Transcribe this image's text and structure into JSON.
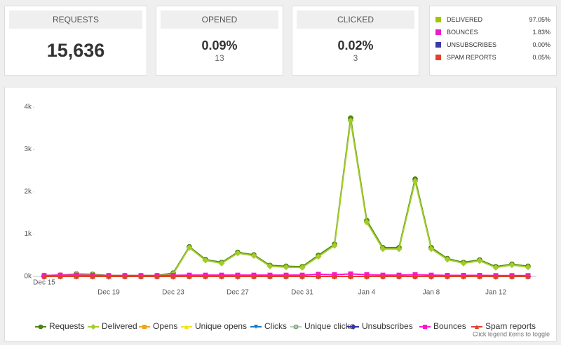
{
  "cards": [
    {
      "label": "REQUESTS",
      "value": "15,636"
    },
    {
      "label": "OPENED",
      "value": "0.09%",
      "sub": "13"
    },
    {
      "label": "CLICKED",
      "value": "0.02%",
      "sub": "3"
    }
  ],
  "stats": [
    {
      "label": "DELIVERED",
      "value": "97.05%",
      "color": "#a4c400"
    },
    {
      "label": "BOUNCES",
      "value": "1.83%",
      "color": "#e81ec8"
    },
    {
      "label": "UNSUBSCRIBES",
      "value": "0.00%",
      "color": "#3a3aa8"
    },
    {
      "label": "SPAM REPORTS",
      "value": "0.05%",
      "color": "#e2412a"
    }
  ],
  "chart_data": {
    "type": "line",
    "categories": [
      "Dec 15",
      null,
      null,
      null,
      "Dec 19",
      null,
      null,
      null,
      "Dec 23",
      null,
      null,
      null,
      "Dec 27",
      null,
      null,
      null,
      "Dec 31",
      null,
      null,
      null,
      "Jan 4",
      null,
      null,
      null,
      "Jan 8",
      null,
      null,
      null,
      "Jan 12",
      null,
      null
    ],
    "series": [
      {
        "name": "Requests",
        "color": "#4c8a10",
        "marker": "circle",
        "values": [
          20,
          30,
          60,
          50,
          20,
          20,
          20,
          20,
          80,
          700,
          400,
          330,
          570,
          510,
          260,
          240,
          230,
          500,
          760,
          3740,
          1320,
          680,
          680,
          2300,
          680,
          420,
          330,
          390,
          230,
          290,
          240
        ]
      },
      {
        "name": "Delivered",
        "color": "#a3cc2a",
        "marker": "diamond",
        "values": [
          15,
          25,
          50,
          40,
          15,
          15,
          15,
          15,
          60,
          680,
          380,
          310,
          550,
          490,
          240,
          220,
          210,
          470,
          730,
          3680,
          1280,
          650,
          650,
          2250,
          650,
          400,
          310,
          370,
          210,
          270,
          220
        ]
      },
      {
        "name": "Opens",
        "color": "#f5a21b",
        "marker": "square",
        "values": [
          0,
          0,
          0,
          0,
          0,
          0,
          0,
          0,
          0,
          0,
          0,
          0,
          0,
          0,
          0,
          0,
          0,
          0,
          0,
          0,
          0,
          0,
          0,
          0,
          0,
          0,
          0,
          0,
          0,
          0,
          0
        ]
      },
      {
        "name": "Unique opens",
        "color": "#f3e21a",
        "marker": "triangle",
        "values": [
          0,
          0,
          0,
          0,
          0,
          0,
          0,
          0,
          0,
          0,
          0,
          0,
          0,
          0,
          0,
          0,
          0,
          0,
          0,
          0,
          0,
          0,
          0,
          0,
          0,
          0,
          0,
          0,
          0,
          0,
          0
        ]
      },
      {
        "name": "Clicks",
        "color": "#1c7bc4",
        "marker": "triangle-down",
        "values": [
          0,
          0,
          0,
          0,
          0,
          0,
          0,
          0,
          0,
          0,
          0,
          0,
          0,
          0,
          0,
          0,
          0,
          0,
          0,
          0,
          0,
          0,
          0,
          0,
          0,
          0,
          0,
          0,
          0,
          0,
          0
        ]
      },
      {
        "name": "Unique clicks",
        "color": "#b4c8cc",
        "marker": "circle",
        "values": [
          0,
          0,
          0,
          0,
          0,
          0,
          0,
          0,
          0,
          0,
          0,
          0,
          0,
          0,
          0,
          0,
          0,
          0,
          0,
          0,
          0,
          0,
          0,
          0,
          0,
          0,
          0,
          0,
          0,
          0,
          0
        ]
      },
      {
        "name": "Unsubscribes",
        "color": "#3535a5",
        "marker": "diamond",
        "values": [
          0,
          0,
          0,
          0,
          0,
          0,
          0,
          0,
          0,
          0,
          0,
          0,
          0,
          0,
          0,
          0,
          0,
          0,
          0,
          0,
          0,
          0,
          0,
          0,
          0,
          0,
          0,
          0,
          0,
          0,
          0
        ]
      },
      {
        "name": "Bounces",
        "color": "#ff14cc",
        "marker": "square",
        "values": [
          20,
          30,
          30,
          25,
          20,
          20,
          20,
          20,
          25,
          30,
          30,
          30,
          30,
          30,
          30,
          30,
          30,
          50,
          40,
          60,
          40,
          30,
          30,
          40,
          30,
          25,
          25,
          25,
          20,
          20,
          20
        ]
      },
      {
        "name": "Spam reports",
        "color": "#e2412a",
        "marker": "triangle",
        "values": [
          0,
          0,
          0,
          0,
          0,
          0,
          0,
          0,
          0,
          0,
          0,
          0,
          0,
          0,
          0,
          0,
          0,
          0,
          0,
          0,
          0,
          0,
          0,
          0,
          0,
          0,
          0,
          0,
          0,
          0,
          0
        ]
      }
    ],
    "ylim": [
      0,
      4200
    ],
    "yticks": [
      {
        "value": 0,
        "label": "0k"
      },
      {
        "value": 1000,
        "label": "1k"
      },
      {
        "value": 2000,
        "label": "2k"
      },
      {
        "value": 3000,
        "label": "3k"
      },
      {
        "value": 4000,
        "label": "4k"
      }
    ],
    "legend": "bottom",
    "note": "Click legend items to toggle"
  }
}
